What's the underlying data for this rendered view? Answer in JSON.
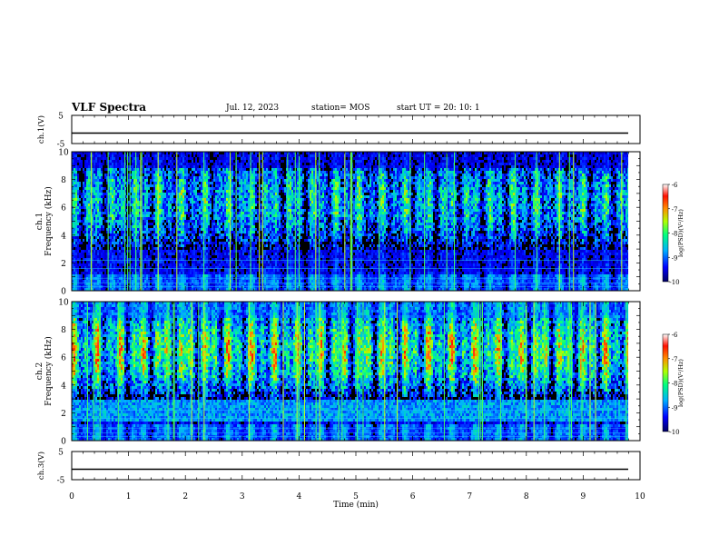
{
  "header": {
    "title": "VLF Spectra",
    "date": "Jul. 12, 2023",
    "station": "station= MOS",
    "start": "start UT = 20: 10: 1"
  },
  "colors": {
    "spectrum_low": "#00007f",
    "spectrum_mid": "#00ff66",
    "spectrum_high": "#ff2a00",
    "background": "#000000"
  },
  "chart_data": [
    {
      "type": "line",
      "name": "ch1-waveform",
      "ylabel": "ch.1(V)",
      "ylim": [
        -5,
        5
      ],
      "yticks": [
        "5",
        "-5"
      ],
      "x": [
        0,
        10
      ],
      "values": [
        0,
        0
      ]
    },
    {
      "type": "heatmap",
      "name": "ch1-spectrogram",
      "ylabel": "ch.1\nFrequency (kHz)",
      "ylim": [
        0,
        10
      ],
      "yticks": [
        "0",
        "2",
        "4",
        "6",
        "8",
        "10"
      ],
      "xlim": [
        0,
        10
      ],
      "colorbar": {
        "label": "log(PSD)(V²/Hz)",
        "ticks": [
          "-6",
          "-7",
          "-8",
          "-9",
          "-10"
        ],
        "range": [
          -10,
          -6
        ]
      },
      "approx_band_kHz": [
        3,
        9
      ],
      "approx_level": -7.5
    },
    {
      "type": "heatmap",
      "name": "ch2-spectrogram",
      "ylabel": "ch.2\nFrequency (kHz)",
      "ylim": [
        0,
        10
      ],
      "yticks": [
        "0",
        "2",
        "4",
        "6",
        "8",
        "10"
      ],
      "xlim": [
        0,
        10
      ],
      "colorbar": {
        "label": "log(PSD)(V²/Hz)",
        "ticks": [
          "-6",
          "-7",
          "-8",
          "-9",
          "-10"
        ],
        "range": [
          -10,
          -6
        ]
      },
      "approx_band_kHz": [
        3,
        9
      ],
      "approx_level": -6.8
    },
    {
      "type": "line",
      "name": "ch3-waveform",
      "ylabel": "ch.3(V)",
      "ylim": [
        -5,
        5
      ],
      "yticks": [
        "5",
        "-5"
      ],
      "x": [
        0,
        10
      ],
      "values": [
        0,
        0
      ]
    },
    {
      "type": "axis",
      "name": "time-axis",
      "xlabel": "Time (min)",
      "xlim": [
        0,
        10
      ],
      "xticks": [
        "0",
        "1",
        "2",
        "3",
        "4",
        "5",
        "6",
        "7",
        "8",
        "9",
        "10"
      ]
    }
  ]
}
